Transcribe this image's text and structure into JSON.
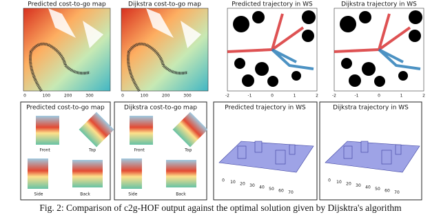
{
  "top_row": [
    {
      "title": "Predicted cost-to-go map",
      "x_ticks": [
        "0",
        "100",
        "200",
        "300"
      ]
    },
    {
      "title": "Dijkstra cost-to-go map",
      "x_ticks": [
        "0",
        "100",
        "200",
        "300"
      ]
    },
    {
      "title": "Predicted trajectory in WS",
      "x_ticks": [
        "-2",
        "-1",
        "0",
        "1",
        "2"
      ]
    },
    {
      "title": "Dijkstra trajectory in WS",
      "x_ticks": [
        "-2",
        "-1",
        "0",
        "1",
        "2"
      ]
    }
  ],
  "bottom_row": [
    {
      "title": "Predicted cost-to-go map",
      "views": [
        "Front",
        "Top",
        "Side",
        "Back"
      ]
    },
    {
      "title": "Dijkstra cost-to-go map",
      "views": [
        "Front",
        "Top",
        "Side",
        "Back"
      ]
    },
    {
      "title": "Predicted trajectory in WS",
      "axis_ticks": [
        "0",
        "10",
        "20",
        "30",
        "40",
        "50",
        "60",
        "70"
      ]
    },
    {
      "title": "Dijkstra trajectory in WS",
      "axis_ticks": [
        "0",
        "10",
        "20",
        "30",
        "40",
        "50",
        "60",
        "70"
      ]
    }
  ],
  "caption": "Fig. 2: Comparison of c2g-HOF output against the optimal solution given by Dijsktra's algorithm"
}
